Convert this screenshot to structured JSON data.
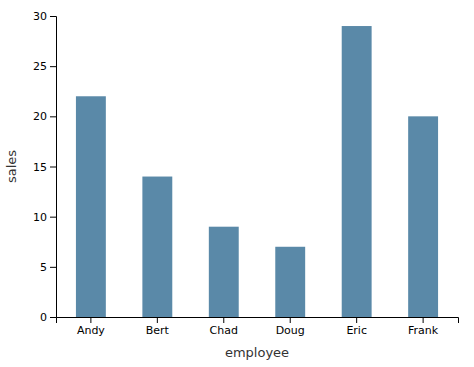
{
  "chart_data": {
    "type": "bar",
    "categories": [
      "Andy",
      "Bert",
      "Chad",
      "Doug",
      "Eric",
      "Frank"
    ],
    "values": [
      22,
      14,
      9,
      7,
      29,
      20
    ],
    "color": "#5a89a8",
    "xlabel": "employee",
    "ylabel": "sales",
    "ylim": [
      0,
      30
    ],
    "yticks": [
      0,
      5,
      10,
      15,
      20,
      25,
      30
    ]
  }
}
